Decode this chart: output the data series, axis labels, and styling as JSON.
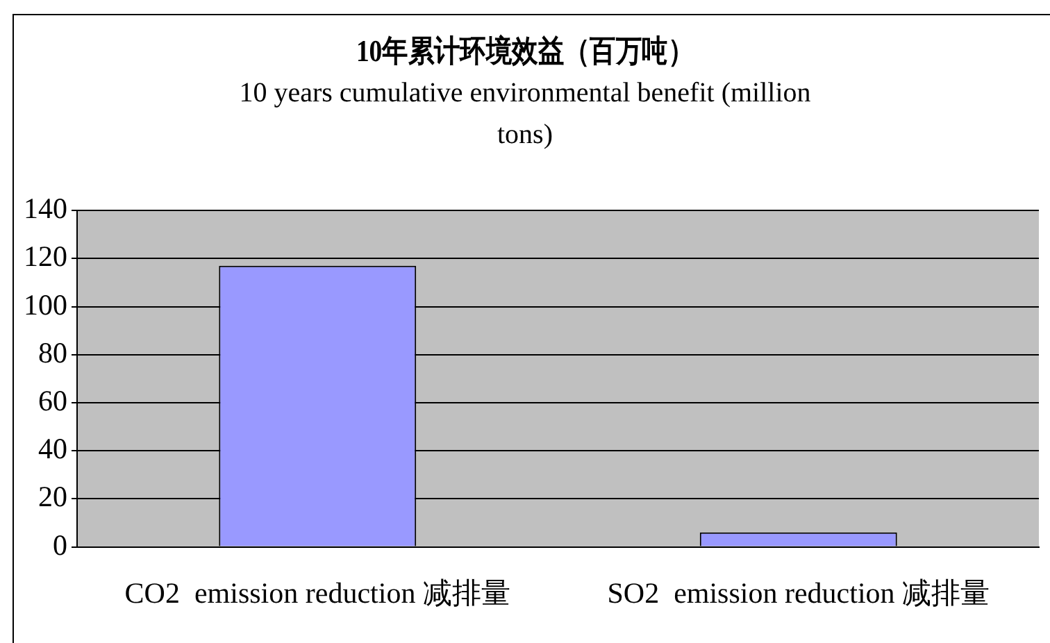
{
  "chart_data": {
    "type": "bar",
    "title": "10年累计环境效益（百万吨）",
    "subtitle": "10 years cumulative environmental benefit (million tons)",
    "categories": [
      "CO2  emission reduction 减排量",
      "SO2  emission reduction 减排量"
    ],
    "values": [
      117,
      6
    ],
    "color": "#9999ff",
    "ylim": [
      0,
      140
    ],
    "yticks": [
      0,
      20,
      40,
      60,
      80,
      100,
      120,
      140
    ],
    "grid": "y",
    "legend": false
  }
}
